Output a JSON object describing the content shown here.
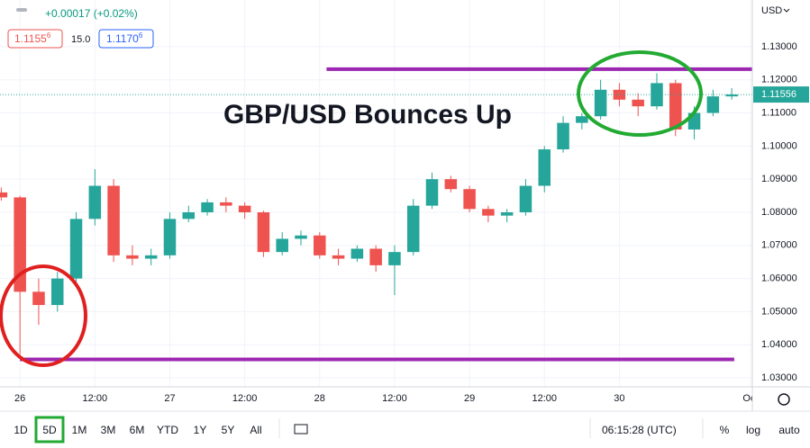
{
  "header": {
    "change": "+0.00017 (+0.02%)",
    "sell": {
      "main": "1.1155",
      "pip": "6"
    },
    "spread": "15.0",
    "buy": {
      "main": "1.1170",
      "pip": "6"
    },
    "currency": "USD"
  },
  "chart_data": {
    "type": "candlestick",
    "title": "GBP/USD Bounces Up",
    "x": [
      -3,
      0,
      3,
      6,
      9,
      12,
      15,
      18,
      21,
      24,
      27,
      30,
      33,
      36,
      39,
      42,
      45,
      48,
      51,
      54,
      57,
      60,
      63,
      66,
      69,
      72,
      75,
      78,
      81,
      84,
      87,
      90,
      93,
      96,
      99,
      102,
      105,
      108,
      111,
      114
    ],
    "open": [
      1.086,
      1.0845,
      1.056,
      1.052,
      1.06,
      1.078,
      1.088,
      1.067,
      1.066,
      1.067,
      1.078,
      1.08,
      1.083,
      1.082,
      1.08,
      1.068,
      1.072,
      1.073,
      1.067,
      1.066,
      1.069,
      1.064,
      1.068,
      1.082,
      1.09,
      1.087,
      1.081,
      1.079,
      1.08,
      1.088,
      1.099,
      1.107,
      1.109,
      1.117,
      1.114,
      1.112,
      1.119,
      1.105,
      1.11,
      1.115
    ],
    "high": [
      1.0875,
      1.085,
      1.06,
      1.062,
      1.08,
      1.093,
      1.09,
      1.07,
      1.069,
      1.08,
      1.082,
      1.084,
      1.0845,
      1.083,
      1.0805,
      1.074,
      1.0745,
      1.074,
      1.069,
      1.07,
      1.07,
      1.07,
      1.084,
      1.092,
      1.091,
      1.088,
      1.082,
      1.081,
      1.09,
      1.1,
      1.109,
      1.11,
      1.12,
      1.119,
      1.116,
      1.122,
      1.12,
      1.112,
      1.117,
      1.1175
    ],
    "low": [
      1.0835,
      1.037,
      1.046,
      1.05,
      1.059,
      1.076,
      1.065,
      1.064,
      1.064,
      1.066,
      1.077,
      1.079,
      1.08,
      1.078,
      1.0665,
      1.067,
      1.07,
      1.066,
      1.064,
      1.065,
      1.062,
      1.055,
      1.067,
      1.081,
      1.086,
      1.08,
      1.077,
      1.077,
      1.079,
      1.086,
      1.098,
      1.105,
      1.108,
      1.112,
      1.109,
      1.111,
      1.103,
      1.102,
      1.109,
      1.114
    ],
    "close": [
      1.0845,
      1.056,
      1.052,
      1.06,
      1.078,
      1.088,
      1.067,
      1.066,
      1.067,
      1.078,
      1.08,
      1.083,
      1.082,
      1.08,
      1.068,
      1.072,
      1.073,
      1.067,
      1.066,
      1.069,
      1.064,
      1.068,
      1.082,
      1.09,
      1.087,
      1.081,
      1.079,
      1.08,
      1.088,
      1.099,
      1.107,
      1.109,
      1.117,
      1.114,
      1.112,
      1.119,
      1.105,
      1.11,
      1.115,
      1.11556
    ],
    "up_color": "#26a69a",
    "down_color": "#ef5350",
    "xlim": [
      -3.2,
      117.3
    ],
    "xticks": [
      {
        "value": 0,
        "label": "26"
      },
      {
        "value": 12,
        "label": "12:00"
      },
      {
        "value": 24,
        "label": "27"
      },
      {
        "value": 36,
        "label": "12:00"
      },
      {
        "value": 48,
        "label": "28"
      },
      {
        "value": 60,
        "label": "12:00"
      },
      {
        "value": 72,
        "label": "29"
      },
      {
        "value": 84,
        "label": "12:00"
      },
      {
        "value": 96,
        "label": "30"
      },
      {
        "value": 117,
        "label": "Oct"
      }
    ],
    "ylim": [
      1.0273,
      1.1441
    ],
    "yticks": [
      {
        "value": 1.03,
        "label": "1.03000"
      },
      {
        "value": 1.04,
        "label": "1.04000"
      },
      {
        "value": 1.05,
        "label": "1.05000"
      },
      {
        "value": 1.06,
        "label": "1.06000"
      },
      {
        "value": 1.07,
        "label": "1.07000"
      },
      {
        "value": 1.08,
        "label": "1.08000"
      },
      {
        "value": 1.09,
        "label": "1.09000"
      },
      {
        "value": 1.1,
        "label": "1.10000"
      },
      {
        "value": 1.11,
        "label": "1.11000"
      },
      {
        "value": 1.12,
        "label": "1.12000"
      },
      {
        "value": 1.13,
        "label": "1.13000"
      }
    ],
    "last_price": 1.11556,
    "hlines": [
      {
        "value": 1.12321,
        "x_range": [
          49.1,
          117.3
        ],
        "color": "#9c27b0"
      },
      {
        "value": 1.0356,
        "x_range": [
          0,
          114.4
        ],
        "color": "#9c27b0"
      }
    ]
  },
  "toolbar": {
    "ranges": [
      "1D",
      "5D",
      "1M",
      "3M",
      "6M",
      "YTD",
      "1Y",
      "5Y",
      "All"
    ],
    "active": 1,
    "time": "06:15:28 (UTC)",
    "options": [
      "%",
      "log",
      "auto"
    ]
  }
}
